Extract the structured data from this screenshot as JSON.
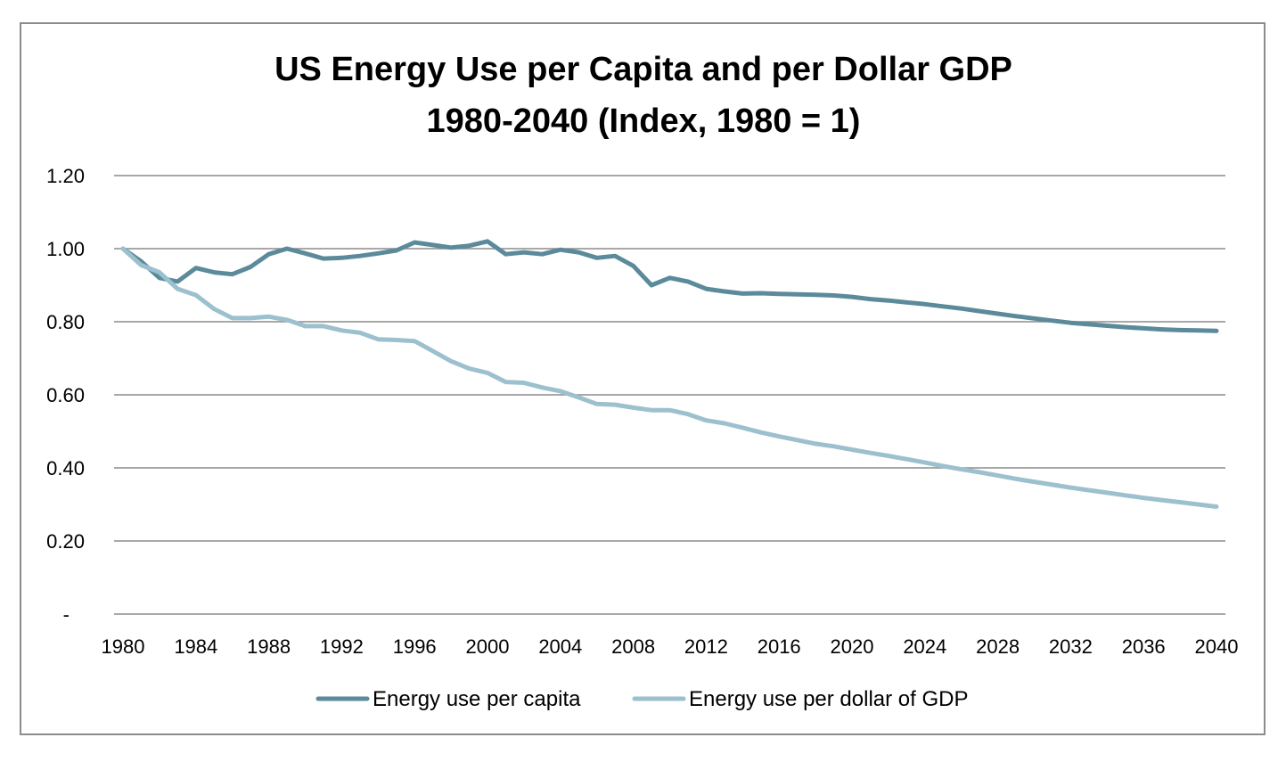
{
  "chart_data": {
    "type": "line",
    "title": [
      "US Energy Use per Capita and per Dollar GDP",
      "1980-2040 (Index, 1980 = 1)"
    ],
    "xlabel": "",
    "ylabel": "",
    "xlim": [
      1980,
      2040
    ],
    "ylim": [
      0,
      1.2
    ],
    "x_ticks": [
      "1980",
      "1984",
      "1988",
      "1992",
      "1996",
      "2000",
      "2004",
      "2008",
      "2012",
      "2016",
      "2020",
      "2024",
      "2028",
      "2032",
      "2036",
      "2040"
    ],
    "y_ticks": [
      {
        "value": 0,
        "label": "-"
      },
      {
        "value": 0.2,
        "label": "0.20"
      },
      {
        "value": 0.4,
        "label": "0.40"
      },
      {
        "value": 0.6,
        "label": "0.60"
      },
      {
        "value": 0.8,
        "label": "0.80"
      },
      {
        "value": 1.0,
        "label": "1.00"
      },
      {
        "value": 1.2,
        "label": "1.20"
      }
    ],
    "grid": true,
    "legend_position": "bottom",
    "x": [
      1980,
      1981,
      1982,
      1983,
      1984,
      1985,
      1986,
      1987,
      1988,
      1989,
      1990,
      1991,
      1992,
      1993,
      1994,
      1995,
      1996,
      1997,
      1998,
      1999,
      2000,
      2001,
      2002,
      2003,
      2004,
      2005,
      2006,
      2007,
      2008,
      2009,
      2010,
      2011,
      2012,
      2013,
      2014,
      2015,
      2016,
      2017,
      2018,
      2019,
      2020,
      2021,
      2022,
      2023,
      2024,
      2025,
      2026,
      2027,
      2028,
      2029,
      2030,
      2031,
      2032,
      2033,
      2034,
      2035,
      2036,
      2037,
      2038,
      2039,
      2040
    ],
    "series": [
      {
        "name": "Energy use per capita",
        "color": "#5b8a9b",
        "values": [
          1.0,
          0.965,
          0.92,
          0.91,
          0.947,
          0.935,
          0.93,
          0.95,
          0.985,
          1.0,
          0.987,
          0.973,
          0.975,
          0.98,
          0.987,
          0.995,
          1.017,
          1.01,
          1.003,
          1.008,
          1.02,
          0.985,
          0.99,
          0.985,
          0.997,
          0.99,
          0.975,
          0.98,
          0.953,
          0.9,
          0.92,
          0.91,
          0.89,
          0.883,
          0.877,
          0.878,
          0.876,
          0.875,
          0.874,
          0.872,
          0.868,
          0.862,
          0.858,
          0.853,
          0.848,
          0.842,
          0.836,
          0.829,
          0.822,
          0.815,
          0.809,
          0.803,
          0.797,
          0.793,
          0.789,
          0.785,
          0.782,
          0.779,
          0.777,
          0.776,
          0.775
        ]
      },
      {
        "name": "Energy use per dollar of GDP",
        "color": "#9dc0cf",
        "values": [
          1.0,
          0.955,
          0.935,
          0.89,
          0.873,
          0.835,
          0.81,
          0.81,
          0.814,
          0.805,
          0.788,
          0.788,
          0.776,
          0.77,
          0.752,
          0.75,
          0.747,
          0.72,
          0.692,
          0.672,
          0.66,
          0.635,
          0.633,
          0.62,
          0.61,
          0.593,
          0.575,
          0.573,
          0.565,
          0.558,
          0.558,
          0.547,
          0.53,
          0.522,
          0.51,
          0.497,
          0.486,
          0.476,
          0.466,
          0.459,
          0.45,
          0.441,
          0.433,
          0.424,
          0.415,
          0.405,
          0.396,
          0.388,
          0.379,
          0.37,
          0.362,
          0.354,
          0.346,
          0.339,
          0.332,
          0.325,
          0.318,
          0.312,
          0.306,
          0.3,
          0.294
        ]
      }
    ]
  }
}
